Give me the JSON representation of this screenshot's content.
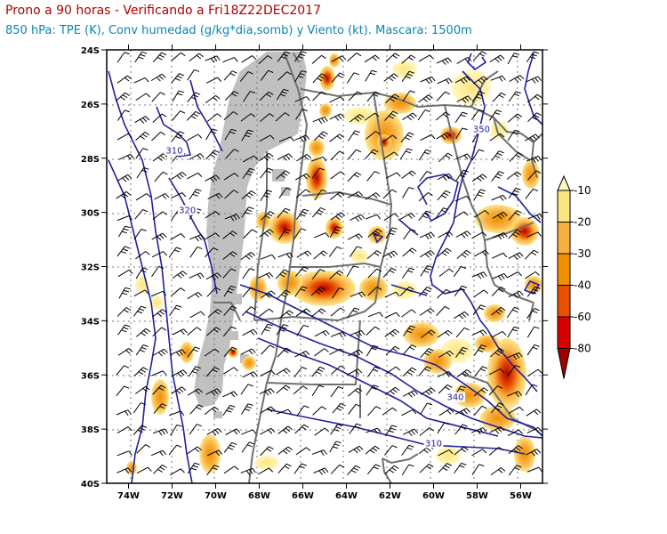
{
  "header": {
    "title": "Prono a 90 horas - Verificando a Fri18Z22DEC2017",
    "subtitle": "850 hPa: TPE (K), Conv humedad (g/kg*dia,somb) y Viento (kt). Mascara: 1500m"
  },
  "map": {
    "lon_range": [
      -75,
      -55
    ],
    "lat_range": [
      -40,
      -24
    ],
    "lon_ticks": [
      {
        "value": -74,
        "label": "74W"
      },
      {
        "value": -72,
        "label": "72W"
      },
      {
        "value": -70,
        "label": "70W"
      },
      {
        "value": -68,
        "label": "68W"
      },
      {
        "value": -66,
        "label": "66W"
      },
      {
        "value": -64,
        "label": "64W"
      },
      {
        "value": -62,
        "label": "62W"
      },
      {
        "value": -60,
        "label": "60W"
      },
      {
        "value": -58,
        "label": "58W"
      },
      {
        "value": -56,
        "label": "56W"
      }
    ],
    "lat_ticks": [
      {
        "value": -24,
        "label": "24S"
      },
      {
        "value": -26,
        "label": "26S"
      },
      {
        "value": -28,
        "label": "28S"
      },
      {
        "value": -30,
        "label": "30S"
      },
      {
        "value": -32,
        "label": "32S"
      },
      {
        "value": -34,
        "label": "34S"
      },
      {
        "value": -36,
        "label": "36S"
      },
      {
        "value": -38,
        "label": "38S"
      },
      {
        "value": -40,
        "label": "40S"
      }
    ],
    "contour_labels": [
      {
        "label": "310",
        "lon": -71.9,
        "lat": -27.8
      },
      {
        "label": "320",
        "lon": -71.3,
        "lat": -30.0
      },
      {
        "label": "350",
        "lon": -57.8,
        "lat": -27.0
      },
      {
        "label": "340",
        "lon": -59.0,
        "lat": -36.9
      },
      {
        "label": "310",
        "lon": -60.0,
        "lat": -38.6
      }
    ],
    "colors": {
      "mask": "#c0c0c0",
      "contour": "#2020a0",
      "borders": "#707070",
      "barbs": "#000000"
    }
  },
  "colorbar": {
    "levels": [
      "-10",
      "-20",
      "-30",
      "-40",
      "-60",
      "-80"
    ],
    "colors": [
      "#fff8c0",
      "#fce480",
      "#f8b040",
      "#f09000",
      "#e85000",
      "#d80000",
      "#a00000"
    ]
  }
}
